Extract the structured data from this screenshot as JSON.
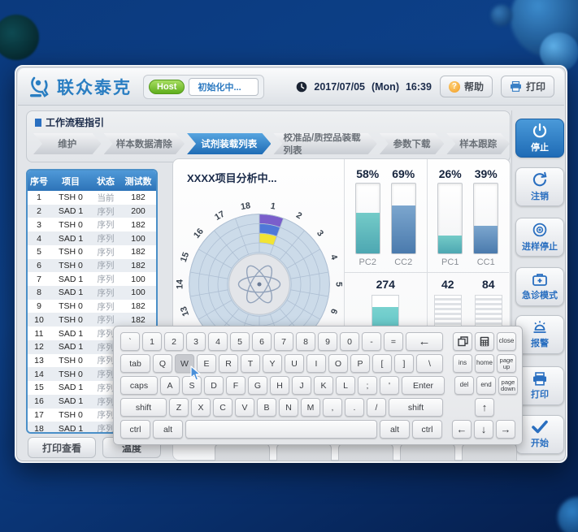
{
  "header": {
    "logo_text": "联众泰克",
    "host_label": "Host",
    "host_status": "初始化中...",
    "date": "2017/07/05",
    "day": "(Mon)",
    "time": "16:39",
    "help_label": "帮助",
    "print_label": "打印"
  },
  "workflow": {
    "title": "工作流程指引",
    "steps": [
      {
        "label": "维护",
        "active": false
      },
      {
        "label": "样本数据清除",
        "active": false
      },
      {
        "label": "试剂装载列表",
        "active": true
      },
      {
        "label": "校准品/质控品装载列表",
        "active": false
      },
      {
        "label": "参数下载",
        "active": false
      },
      {
        "label": "样本跟踪",
        "active": false
      }
    ]
  },
  "sample_table": {
    "columns": [
      "序号",
      "项目",
      "状态",
      "测试数"
    ],
    "rows": [
      [
        "1",
        "TSH 0",
        "当前",
        "182"
      ],
      [
        "2",
        "SAD 1",
        "序列",
        "200"
      ],
      [
        "3",
        "TSH 0",
        "序列",
        "182"
      ],
      [
        "4",
        "SAD 1",
        "序列",
        "100"
      ],
      [
        "5",
        "TSH 0",
        "序列",
        "182"
      ],
      [
        "6",
        "TSH 0",
        "序列",
        "182"
      ],
      [
        "7",
        "SAD 1",
        "序列",
        "100"
      ],
      [
        "8",
        "SAD 1",
        "序列",
        "100"
      ],
      [
        "9",
        "TSH 0",
        "序列",
        "182"
      ],
      [
        "10",
        "TSH 0",
        "序列",
        "182"
      ],
      [
        "11",
        "SAD 1",
        "序列",
        ""
      ],
      [
        "12",
        "SAD 1",
        "序列",
        ""
      ],
      [
        "13",
        "TSH 0",
        "序列",
        ""
      ],
      [
        "14",
        "TSH 0",
        "序列",
        ""
      ],
      [
        "15",
        "SAD 1",
        "序列",
        ""
      ],
      [
        "16",
        "SAD 1",
        "序列",
        ""
      ],
      [
        "17",
        "TSH 0",
        "序列",
        ""
      ],
      [
        "18",
        "SAD 1",
        "序列",
        ""
      ]
    ]
  },
  "analysis": {
    "title": "XXXX项目分析中...",
    "tray": {
      "sector_count": 18,
      "highlighted_sector": 1,
      "segment_colors": [
        "#7a5ecb",
        "#4f78d8",
        "#f2e434"
      ],
      "base_color": "#ccdbe9"
    },
    "gauges": [
      {
        "label": "PC2",
        "percent": 58,
        "color": "teal"
      },
      {
        "label": "CC2",
        "percent": 69,
        "color": "blue"
      },
      {
        "label": "PC1",
        "percent": 26,
        "color": "teal"
      },
      {
        "label": "CC1",
        "percent": 39,
        "color": "blue"
      }
    ],
    "counters": [
      {
        "value": "274",
        "style": "filled"
      },
      {
        "value": "42",
        "style": "striped"
      },
      {
        "value": "84",
        "style": "striped"
      }
    ]
  },
  "sidebar": {
    "buttons": [
      {
        "label": "停止",
        "icon": "power-icon",
        "active": true
      },
      {
        "label": "注销",
        "icon": "logout-icon",
        "active": false
      },
      {
        "label": "进样停止",
        "icon": "sample-stop-icon",
        "active": false
      },
      {
        "label": "急诊模式",
        "icon": "emergency-icon",
        "active": false
      },
      {
        "label": "报警",
        "icon": "alarm-icon",
        "active": false
      },
      {
        "label": "打印",
        "icon": "printer-icon",
        "active": false
      },
      {
        "label": "开始",
        "icon": "check-icon",
        "active": false
      }
    ]
  },
  "bottom_bar": {
    "buttons": [
      "打印查看",
      "温度"
    ]
  },
  "keyboard": {
    "pressed_key": "W",
    "rows": [
      {
        "main": [
          [
            "`",
            24
          ],
          [
            "1",
            24
          ],
          [
            "2",
            24
          ],
          [
            "3",
            24
          ],
          [
            "4",
            24
          ],
          [
            "5",
            24
          ],
          [
            "6",
            24
          ],
          [
            "7",
            24
          ],
          [
            "8",
            24
          ],
          [
            "9",
            24
          ],
          [
            "0",
            24
          ],
          [
            "-",
            24
          ],
          [
            "=",
            24
          ],
          [
            "backspace",
            46
          ]
        ],
        "side": [
          [
            "win",
            24
          ],
          [
            "calc",
            24
          ],
          [
            "close",
            24
          ]
        ]
      },
      {
        "main": [
          [
            "tab",
            37
          ],
          [
            "Q",
            24
          ],
          [
            "W",
            24
          ],
          [
            "E",
            24
          ],
          [
            "R",
            24
          ],
          [
            "T",
            24
          ],
          [
            "Y",
            24
          ],
          [
            "U",
            24
          ],
          [
            "I",
            24
          ],
          [
            "O",
            24
          ],
          [
            "P",
            24
          ],
          [
            "[",
            24
          ],
          [
            "]",
            24
          ],
          [
            "\\",
            33
          ]
        ],
        "side": [
          [
            "ins",
            24
          ],
          [
            "home",
            24
          ],
          [
            "page up",
            24
          ]
        ]
      },
      {
        "main": [
          [
            "caps",
            46
          ],
          [
            "A",
            24
          ],
          [
            "S",
            24
          ],
          [
            "D",
            24
          ],
          [
            "F",
            24
          ],
          [
            "G",
            24
          ],
          [
            "H",
            24
          ],
          [
            "J",
            24
          ],
          [
            "K",
            24
          ],
          [
            "L",
            24
          ],
          [
            ";",
            24
          ],
          [
            "'",
            24
          ],
          [
            "Enter",
            53
          ]
        ],
        "side": [
          [
            "del",
            24
          ],
          [
            "end",
            24
          ],
          [
            "page down",
            24
          ]
        ]
      },
      {
        "main": [
          [
            "shift",
            57
          ],
          [
            "Z",
            24
          ],
          [
            "X",
            24
          ],
          [
            "C",
            24
          ],
          [
            "V",
            24
          ],
          [
            "B",
            24
          ],
          [
            "N",
            24
          ],
          [
            "M",
            24
          ],
          [
            ",",
            24
          ],
          [
            ".",
            24
          ],
          [
            "/",
            24
          ],
          [
            "shift",
            67
          ]
        ],
        "side": [
          [
            "",
            24
          ],
          [
            "↑",
            24
          ],
          [
            "",
            24
          ]
        ]
      },
      {
        "main": [
          [
            "ctrl",
            37
          ],
          [
            "alt",
            37
          ],
          [
            "space",
            0
          ],
          [
            "alt",
            37
          ],
          [
            "ctrl",
            37
          ]
        ],
        "side": [
          [
            "←",
            24
          ],
          [
            "↓",
            24
          ],
          [
            "→",
            24
          ]
        ]
      }
    ]
  },
  "colors": {
    "accent_blue": "#2a7ec2",
    "active_step": "#1f6cb5",
    "gauge_teal": "#53b4ba",
    "gauge_blue": "#5b8bb8",
    "host_green": "#6db32a"
  }
}
